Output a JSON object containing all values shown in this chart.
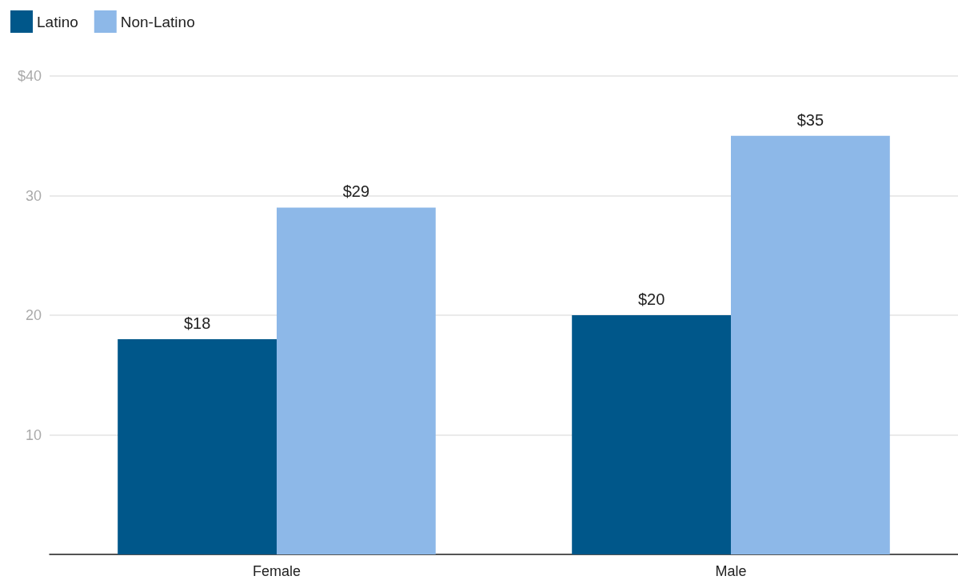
{
  "chart_data": {
    "type": "bar",
    "categories": [
      "Female",
      "Male"
    ],
    "series": [
      {
        "name": "Latino",
        "color": "#00578a",
        "values": [
          18,
          20
        ],
        "value_labels": [
          "$18",
          "$20"
        ]
      },
      {
        "name": "Non-Latino",
        "color": "#8db8e8",
        "values": [
          29,
          35
        ],
        "value_labels": [
          "$29",
          "$35"
        ]
      }
    ],
    "ylim": [
      0,
      40
    ],
    "yticks": [
      {
        "value": 0,
        "label": null
      },
      10,
      20,
      30,
      {
        "value": 40,
        "label": "$40"
      }
    ],
    "grid": "y",
    "legend": "top left"
  }
}
